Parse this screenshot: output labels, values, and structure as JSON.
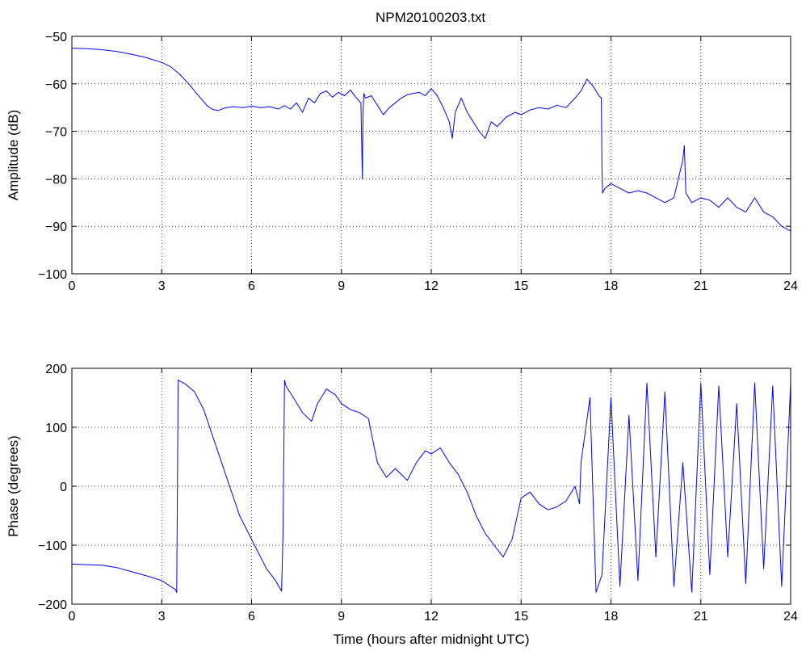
{
  "title": "NPM20100203.txt",
  "chart_data": [
    {
      "type": "line",
      "title": "NPM20100203.txt",
      "xlabel": "",
      "ylabel": "Amplitude (dB)",
      "xlim": [
        0,
        24
      ],
      "ylim": [
        -100,
        -50
      ],
      "xticks": [
        0,
        3,
        6,
        9,
        12,
        15,
        18,
        21,
        24
      ],
      "yticks": [
        -50,
        -60,
        -70,
        -80,
        -90,
        -100
      ],
      "grid": true,
      "color": "#0000ff",
      "series": [
        {
          "x": [
            0,
            0.5,
            1.0,
            1.5,
            2.0,
            2.5,
            3.0,
            3.3,
            3.6,
            3.9,
            4.2,
            4.5,
            4.7,
            4.9,
            5.1,
            5.4,
            5.7,
            6.0,
            6.3,
            6.6,
            6.9,
            7.1,
            7.3,
            7.5,
            7.7,
            7.9,
            8.1,
            8.3,
            8.5,
            8.7,
            8.9,
            9.1,
            9.3,
            9.5,
            9.65,
            9.7,
            9.72,
            9.75,
            9.8,
            10.0,
            10.2,
            10.4,
            10.6,
            10.8,
            11.0,
            11.2,
            11.4,
            11.6,
            11.8,
            12.0,
            12.2,
            12.4,
            12.6,
            12.7,
            12.8,
            13.0,
            13.2,
            13.4,
            13.6,
            13.8,
            14.0,
            14.2,
            14.5,
            14.8,
            15.0,
            15.3,
            15.6,
            15.9,
            16.2,
            16.5,
            16.8,
            17.0,
            17.2,
            17.4,
            17.6,
            17.68,
            17.7,
            17.72,
            17.8,
            18.0,
            18.3,
            18.6,
            18.9,
            19.2,
            19.5,
            19.8,
            20.1,
            20.4,
            20.45,
            20.5,
            20.7,
            21.0,
            21.3,
            21.6,
            21.9,
            22.2,
            22.5,
            22.8,
            23.1,
            23.4,
            23.7,
            24.0
          ],
          "y": [
            -52.5,
            -52.6,
            -52.8,
            -53.2,
            -53.8,
            -54.5,
            -55.5,
            -56.4,
            -58,
            -60,
            -62.3,
            -64.5,
            -65.4,
            -65.6,
            -65.1,
            -64.8,
            -65,
            -64.7,
            -65,
            -64.8,
            -65.3,
            -64.6,
            -65.3,
            -64,
            -66,
            -63,
            -64,
            -62,
            -61.5,
            -62.8,
            -61.8,
            -62.5,
            -61.3,
            -63,
            -64,
            -80,
            -66,
            -62,
            -63,
            -62.5,
            -64.5,
            -66.5,
            -65,
            -64,
            -63,
            -62.3,
            -62,
            -61.8,
            -62.5,
            -61,
            -62.5,
            -65,
            -68,
            -71.5,
            -66,
            -63,
            -66,
            -68,
            -70,
            -71.5,
            -68,
            -69,
            -67,
            -66,
            -66.5,
            -65.5,
            -65,
            -65.3,
            -64.5,
            -65,
            -63,
            -61.5,
            -59,
            -60.5,
            -62.5,
            -63,
            -78,
            -83,
            -82,
            -81,
            -82,
            -83,
            -82.5,
            -83,
            -84,
            -85,
            -84,
            -76,
            -73,
            -83,
            -85,
            -84,
            -84.5,
            -86,
            -84,
            -86,
            -87,
            -84,
            -87,
            -88,
            -90,
            -91
          ]
        }
      ]
    },
    {
      "type": "line",
      "title": "",
      "xlabel": "Time (hours after midnight UTC)",
      "ylabel": "Phase (degrees)",
      "xlim": [
        0,
        24
      ],
      "ylim": [
        -200,
        200
      ],
      "xticks": [
        0,
        3,
        6,
        9,
        12,
        15,
        18,
        21,
        24
      ],
      "yticks": [
        200,
        100,
        0,
        -100,
        -200
      ],
      "grid": true,
      "color": "#0000ff",
      "series": [
        {
          "x": [
            0,
            0.5,
            1.0,
            1.5,
            2.0,
            2.5,
            3.0,
            3.45,
            3.5,
            3.55,
            3.8,
            4.1,
            4.4,
            4.7,
            5.0,
            5.3,
            5.6,
            5.9,
            6.2,
            6.5,
            6.8,
            7.0,
            7.05,
            7.1,
            7.15,
            7.4,
            7.7,
            8.0,
            8.2,
            8.5,
            8.8,
            9.0,
            9.3,
            9.6,
            9.9,
            10.2,
            10.5,
            10.8,
            11.0,
            11.2,
            11.5,
            11.8,
            12.0,
            12.3,
            12.6,
            12.9,
            13.2,
            13.5,
            13.8,
            14.1,
            14.4,
            14.7,
            15.0,
            15.3,
            15.6,
            15.9,
            16.2,
            16.5,
            16.8,
            16.95,
            17.0,
            17.3,
            17.5,
            17.7,
            18.0,
            18.3,
            18.6,
            18.9,
            19.2,
            19.5,
            19.8,
            20.1,
            20.4,
            20.7,
            21.0,
            21.3,
            21.6,
            21.9,
            22.2,
            22.5,
            22.8,
            23.1,
            23.4,
            23.7,
            24.0
          ],
          "y": [
            -132,
            -133,
            -134,
            -138,
            -145,
            -152,
            -160,
            -175,
            -180,
            180,
            173,
            160,
            130,
            85,
            40,
            -5,
            -50,
            -80,
            -110,
            -140,
            -160,
            -178,
            -85,
            180,
            170,
            150,
            125,
            110,
            140,
            165,
            155,
            140,
            130,
            125,
            115,
            40,
            15,
            30,
            20,
            10,
            40,
            60,
            55,
            65,
            40,
            20,
            -10,
            -50,
            -80,
            -100,
            -120,
            -90,
            -20,
            -10,
            -30,
            -40,
            -35,
            -25,
            0,
            -30,
            40,
            150,
            -180,
            -150,
            150,
            -170,
            120,
            -160,
            175,
            -120,
            160,
            -170,
            40,
            -180,
            175,
            -150,
            170,
            -120,
            140,
            -165,
            175,
            -140,
            170,
            -170,
            175
          ]
        }
      ]
    }
  ]
}
